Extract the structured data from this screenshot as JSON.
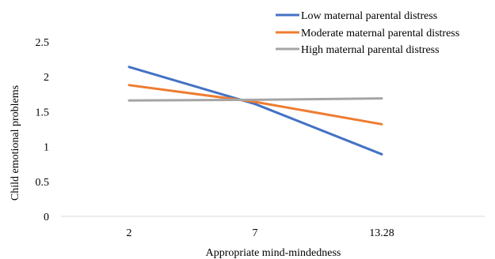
{
  "chart_data": {
    "type": "line",
    "title": "",
    "xlabel": "Appropriate mind-mindedness",
    "ylabel": "Child emotional problems",
    "categories": [
      "2",
      "7",
      "13.28"
    ],
    "ylim": [
      0,
      2.5
    ],
    "yticks": [
      "0",
      "0.5",
      "1",
      "1.5",
      "2",
      "2.5"
    ],
    "grid": false,
    "legend_position": "top-right",
    "series": [
      {
        "name": "Low maternal parental distress",
        "color": "#4472C4",
        "values": [
          2.14,
          1.61,
          0.89
        ]
      },
      {
        "name": "Moderate maternal parental distress",
        "color": "#ED7D31",
        "values": [
          1.88,
          1.64,
          1.32
        ]
      },
      {
        "name": "High maternal parental distress",
        "color": "#A5A5A5",
        "values": [
          1.66,
          1.67,
          1.69
        ]
      }
    ]
  }
}
